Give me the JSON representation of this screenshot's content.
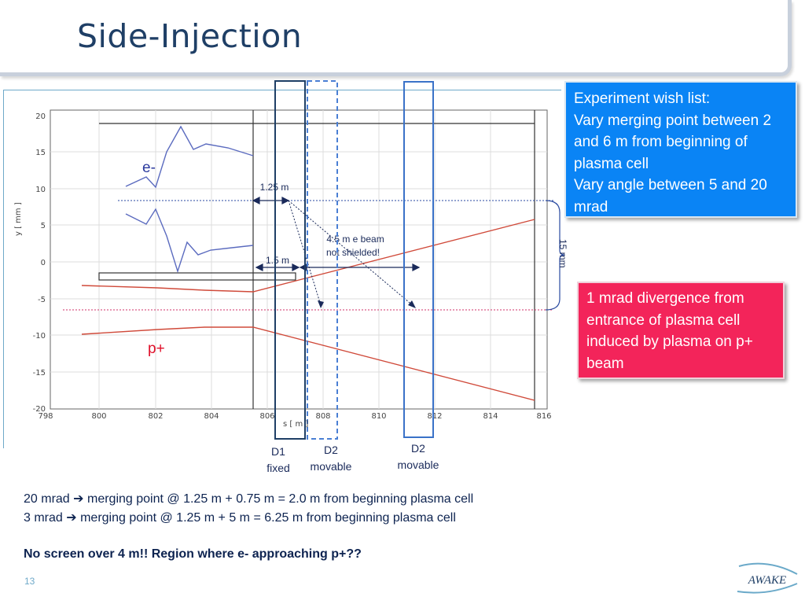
{
  "title": "Side-Injection",
  "plot": {
    "y_ticks": [
      "20",
      "15",
      "10",
      "5",
      "0",
      "-5",
      "-10",
      "-15",
      "-20"
    ],
    "x_ticks": [
      "798",
      "800",
      "802",
      "804",
      "806",
      "808",
      "810",
      "812",
      "814",
      "816"
    ],
    "ylabel": "y [ mm ]",
    "xlabel": "s [ m ]"
  },
  "labels": {
    "electron": "e-",
    "proton": "p+"
  },
  "annotations": {
    "dist_125": "1.25 m",
    "dist_15": "1.5 m",
    "beam_line1": "4.5 m e beam",
    "beam_line2": "not shielded!",
    "gap": "15 mm"
  },
  "detectors": {
    "d1_name": "D1",
    "d1_state": "fixed",
    "d2a_name": "D2",
    "d2a_state": "movable",
    "d2b_name": "D2",
    "d2b_state": "movable"
  },
  "wishlist": {
    "heading": "Experiment wish list:",
    "line1": "Vary merging point between 2 and 6 m from beginning of plasma cell",
    "line2": "Vary angle between 5 and 20 mrad"
  },
  "divergence_note": "1 mrad divergence from entrance of plasma cell induced by plasma on p+ beam",
  "notes": {
    "line1": "20 mrad ➔ merging point @ 1.25 m + 0.75 m = 2.0 m from beginning plasma cell",
    "line2": "3 mrad  ➔ merging point @ 1.25 m + 5 m = 6.25 m from beginning plasma cell",
    "line3": "No screen over 4 m!! Region where e- approaching p+??"
  },
  "page_number": "13",
  "logo_text": "AWAKE",
  "colors": {
    "title": "#1f3f66",
    "wishlist_box": "#0a84f5",
    "divergence_box": "#f3245a",
    "electron": "#5b6bbf",
    "proton": "#d04a3a"
  }
}
